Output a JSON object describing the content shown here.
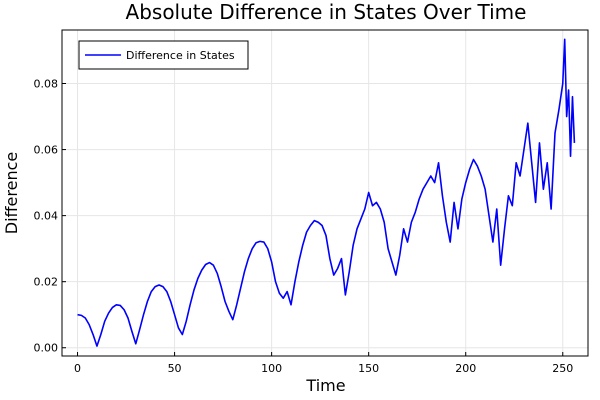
{
  "chart_data": {
    "type": "line",
    "title": "Absolute Difference in States Over Time",
    "xlabel": "Time",
    "ylabel": "Difference",
    "xlim": [
      -8,
      263
    ],
    "ylim": [
      -0.0025,
      0.0962
    ],
    "xticks": [
      0,
      50,
      100,
      150,
      200,
      250
    ],
    "xtick_labels": [
      "0",
      "50",
      "100",
      "150",
      "200",
      "250"
    ],
    "yticks": [
      0.0,
      0.02,
      0.04,
      0.06,
      0.08
    ],
    "ytick_labels": [
      "0.00",
      "0.02",
      "0.04",
      "0.06",
      "0.08"
    ],
    "grid": true,
    "legend": {
      "position": "top-left"
    },
    "series": [
      {
        "name": "Difference in States",
        "color": "#0000ff",
        "x": [
          0,
          2,
          4,
          6,
          8,
          10,
          12,
          14,
          16,
          18,
          20,
          22,
          24,
          26,
          28,
          30,
          32,
          34,
          36,
          38,
          40,
          42,
          44,
          46,
          48,
          50,
          52,
          54,
          56,
          58,
          60,
          62,
          64,
          66,
          68,
          70,
          72,
          74,
          76,
          78,
          80,
          82,
          84,
          86,
          88,
          90,
          92,
          94,
          96,
          98,
          100,
          102,
          104,
          106,
          108,
          110,
          112,
          114,
          116,
          118,
          120,
          122,
          124,
          126,
          128,
          130,
          132,
          134,
          136,
          138,
          140,
          142,
          144,
          146,
          148,
          150,
          152,
          154,
          156,
          158,
          160,
          162,
          164,
          166,
          168,
          170,
          172,
          174,
          176,
          178,
          180,
          182,
          184,
          186,
          188,
          190,
          192,
          194,
          196,
          198,
          200,
          202,
          204,
          206,
          208,
          210,
          212,
          214,
          216,
          218,
          220,
          222,
          224,
          226,
          228,
          230,
          232,
          234,
          236,
          238,
          240,
          242,
          244,
          246,
          248,
          250,
          251,
          252,
          253,
          254,
          255,
          256
        ],
        "values": [
          0.01,
          0.0098,
          0.009,
          0.007,
          0.004,
          0.0005,
          0.004,
          0.008,
          0.0105,
          0.0122,
          0.013,
          0.0128,
          0.0115,
          0.009,
          0.005,
          0.0012,
          0.0055,
          0.01,
          0.014,
          0.017,
          0.0185,
          0.019,
          0.0185,
          0.017,
          0.014,
          0.01,
          0.006,
          0.004,
          0.008,
          0.013,
          0.0175,
          0.021,
          0.0235,
          0.0252,
          0.0258,
          0.025,
          0.0225,
          0.0185,
          0.014,
          0.011,
          0.0085,
          0.013,
          0.018,
          0.023,
          0.027,
          0.03,
          0.0318,
          0.0322,
          0.032,
          0.03,
          0.026,
          0.02,
          0.0165,
          0.015,
          0.017,
          0.013,
          0.02,
          0.026,
          0.031,
          0.035,
          0.037,
          0.0385,
          0.038,
          0.037,
          0.034,
          0.027,
          0.022,
          0.024,
          0.027,
          0.016,
          0.023,
          0.031,
          0.036,
          0.039,
          0.042,
          0.047,
          0.043,
          0.044,
          0.042,
          0.038,
          0.03,
          0.026,
          0.022,
          0.028,
          0.036,
          0.032,
          0.038,
          0.041,
          0.045,
          0.048,
          0.05,
          0.052,
          0.05,
          0.056,
          0.046,
          0.038,
          0.032,
          0.044,
          0.036,
          0.045,
          0.05,
          0.054,
          0.057,
          0.055,
          0.052,
          0.048,
          0.04,
          0.032,
          0.042,
          0.025,
          0.036,
          0.046,
          0.043,
          0.056,
          0.052,
          0.06,
          0.068,
          0.056,
          0.044,
          0.062,
          0.048,
          0.056,
          0.042,
          0.065,
          0.072,
          0.08,
          0.0934,
          0.07,
          0.078,
          0.058,
          0.076,
          0.062
        ]
      }
    ]
  }
}
